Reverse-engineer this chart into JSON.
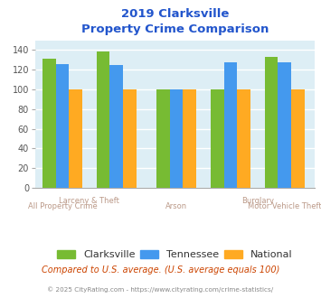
{
  "title_line1": "2019 Clarksville",
  "title_line2": "Property Crime Comparison",
  "categories": [
    "All Property Crime",
    "Larceny & Theft",
    "Arson",
    "Burglary",
    "Motor Vehicle Theft"
  ],
  "clarksville": [
    131,
    139,
    100,
    100,
    133
  ],
  "tennessee": [
    126,
    125,
    100,
    128,
    128
  ],
  "national": [
    100,
    100,
    100,
    100,
    100
  ],
  "color_clarksville": "#77bb33",
  "color_tennessee": "#4499ee",
  "color_national": "#ffaa22",
  "title_color": "#2255cc",
  "plot_bg": "#ddeef5",
  "ylim": [
    0,
    150
  ],
  "yticks": [
    0,
    20,
    40,
    60,
    80,
    100,
    120,
    140
  ],
  "xlabel_color": "#bb9988",
  "footer_text": "Compared to U.S. average. (U.S. average equals 100)",
  "footer_color": "#cc4400",
  "copyright_text": "© 2025 CityRating.com - https://www.cityrating.com/crime-statistics/",
  "copyright_color": "#888888",
  "legend_labels": [
    "Clarksville",
    "Tennessee",
    "National"
  ],
  "bar_width": 0.22
}
